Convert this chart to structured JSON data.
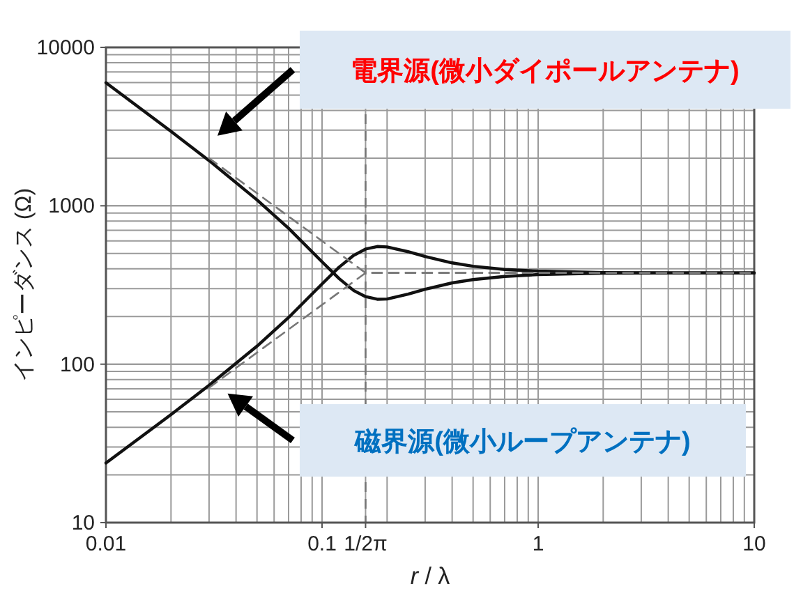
{
  "chart_data": {
    "type": "line",
    "xlabel": "r / λ",
    "ylabel": "インピーダンス (Ω)",
    "log": "xy",
    "xlim": [
      0.01,
      10
    ],
    "ylim": [
      10,
      10000
    ],
    "xticks": [
      0.01,
      0.1,
      {
        "value": 0.159,
        "label": "1/2π"
      },
      1,
      10
    ],
    "yticks": [
      10,
      100,
      1000,
      10000
    ],
    "grid": true,
    "series": [
      {
        "color": "#111111",
        "line_style": "solid",
        "x": [
          0.01,
          0.02,
          0.03,
          0.05,
          0.07,
          0.1,
          0.12,
          0.14,
          0.159,
          0.18,
          0.2,
          0.25,
          0.3,
          0.4,
          0.5,
          0.7,
          1,
          2,
          5,
          10
        ],
        "values": [
          5980,
          2950,
          1930,
          1090,
          721,
          443,
          347,
          292,
          267,
          257,
          258,
          277,
          297,
          326,
          342,
          358,
          368,
          375,
          377,
          377
        ]
      },
      {
        "color": "#111111",
        "line_style": "solid",
        "x": [
          0.01,
          0.02,
          0.03,
          0.05,
          0.07,
          0.1,
          0.12,
          0.14,
          0.159,
          0.18,
          0.2,
          0.25,
          0.3,
          0.4,
          0.5,
          0.7,
          1,
          2,
          5,
          10
        ],
        "values": [
          23.8,
          48.1,
          73.6,
          130,
          197,
          321,
          410,
          486,
          533,
          553,
          550,
          513,
          478,
          436,
          415,
          396,
          387,
          379,
          377,
          377
        ]
      },
      {
        "color": "#777777",
        "line_style": "dashed",
        "x": [
          0.03,
          0.159,
          10
        ],
        "values": [
          2000,
          377,
          377
        ]
      },
      {
        "color": "#777777",
        "line_style": "dashed",
        "x": [
          0.03,
          0.159,
          10
        ],
        "values": [
          71,
          377,
          377
        ]
      }
    ],
    "ref_lines": [
      {
        "axis": "x",
        "value": 0.159,
        "color": "#777777",
        "line_style": "dashed"
      }
    ],
    "annotations": [
      "電界源(微小ダイポールアンテナ)",
      "磁界源(微小ループアンテナ)"
    ]
  }
}
